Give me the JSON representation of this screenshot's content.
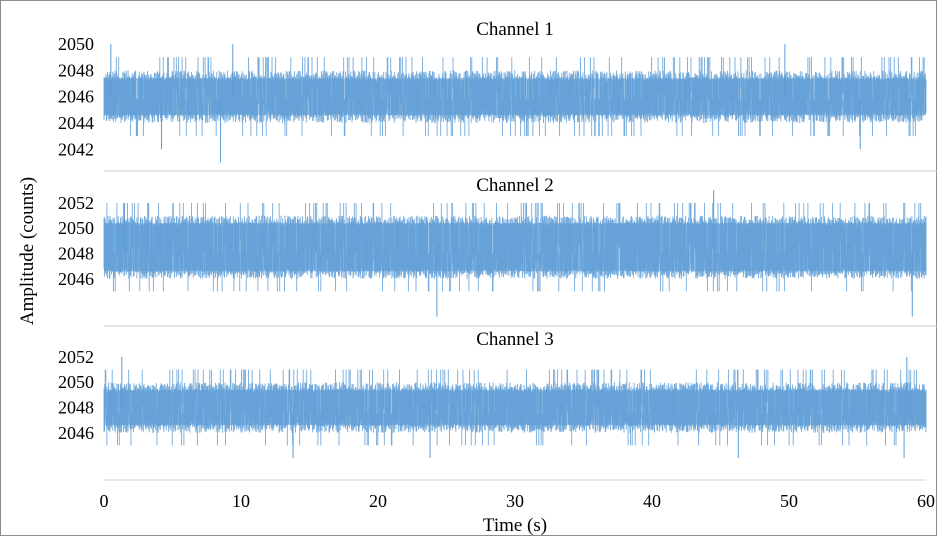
{
  "chart_data": {
    "type": "line",
    "ylabel": "Amplitude (counts)",
    "xlabel": "Time (s)",
    "xlim": [
      0,
      60
    ],
    "x_ticks": [
      "0",
      "10",
      "20",
      "30",
      "40",
      "50",
      "60"
    ],
    "grid": false,
    "line_color": "#5b9bd5",
    "panels": [
      {
        "title": "Channel 1",
        "y_ticks": [
          "2042",
          "2044",
          "2046",
          "2048",
          "2050"
        ],
        "ylim": [
          2040.5,
          2051
        ],
        "series": [
          {
            "baseline_range": [
              2044,
              2048
            ],
            "center": 2045.8,
            "min": 2041,
            "max": 2050,
            "spikes": [
              [
                8.5,
                2041
              ],
              [
                4.2,
                2042
              ],
              [
                0.5,
                2050
              ],
              [
                9.4,
                2050
              ],
              [
                49.7,
                2050
              ],
              [
                55.2,
                2042
              ]
            ]
          }
        ]
      },
      {
        "title": "Channel 2",
        "y_ticks": [
          "2046",
          "2048",
          "2050",
          "2052"
        ],
        "ylim": [
          2042.5,
          2053.5
        ],
        "series": [
          {
            "baseline_range": [
              2046,
              2051
            ],
            "center": 2048,
            "min": 2043,
            "max": 2053,
            "spikes": [
              [
                24.3,
                2043
              ],
              [
                59,
                2043
              ],
              [
                44.5,
                2053
              ],
              [
                1.5,
                2052
              ],
              [
                3.2,
                2052
              ]
            ]
          }
        ]
      },
      {
        "title": "Channel 3",
        "y_ticks": [
          "2046",
          "2048",
          "2052"
        ],
        "y_ticks_extra": [
          "2050"
        ],
        "ylim": [
          2042.5,
          2053.5
        ],
        "series": [
          {
            "baseline_range": [
              2046,
              2050
            ],
            "center": 2047.5,
            "min": 2044,
            "max": 2053,
            "spikes": [
              [
                13.8,
                2044
              ],
              [
                23.8,
                2044
              ],
              [
                46.3,
                2044
              ],
              [
                58.4,
                2044
              ],
              [
                1.3,
                2052
              ],
              [
                58.6,
                2052
              ]
            ]
          }
        ]
      }
    ]
  }
}
